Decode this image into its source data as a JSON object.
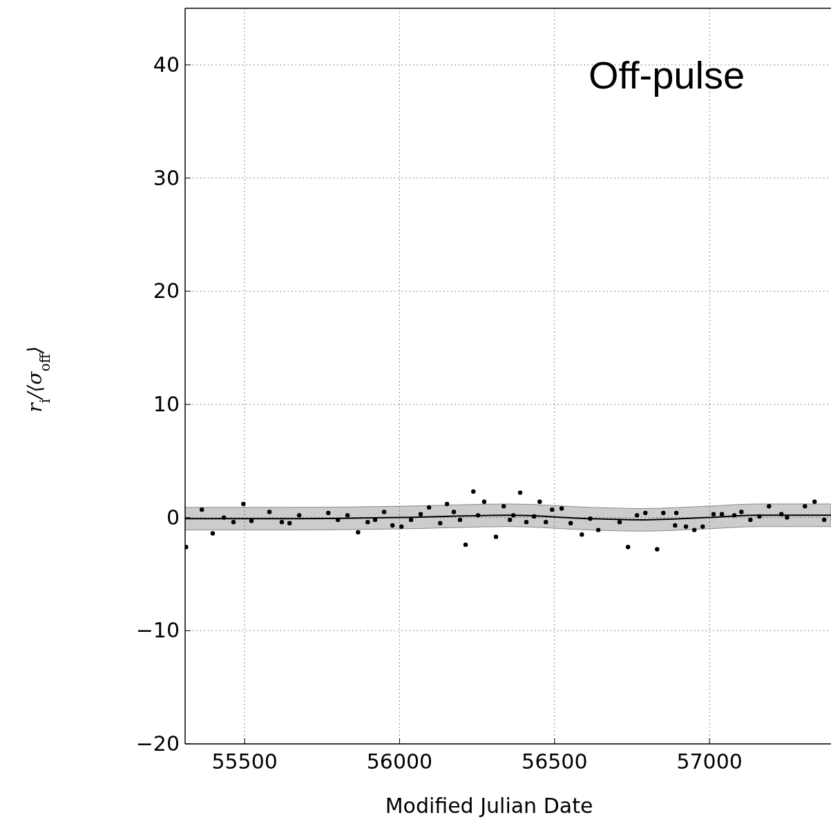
{
  "chart_data": {
    "type": "scatter",
    "title": "Off-pulse",
    "xlabel": "Modified Julian Date",
    "ylabel": "r$_{i}$/⟨σ$_{off}$⟩",
    "xlim": [
      55308,
      57392
    ],
    "xticks": [
      55500,
      56000,
      56500,
      57000
    ],
    "ylim": [
      -20,
      45
    ],
    "yticks": [
      -20,
      -10,
      0,
      10,
      20,
      30,
      40
    ],
    "grid": true,
    "series": [
      {
        "type": "line",
        "color": "#000000",
        "x": [
          55308,
          55647,
          56004,
          56358,
          56615,
          56784,
          56991,
          57156,
          57392
        ],
        "values": [
          -0.1,
          -0.1,
          0.0,
          0.2,
          -0.1,
          -0.2,
          0.0,
          0.2,
          0.2
        ],
        "lower": [
          -1.1,
          -1.1,
          -1.0,
          -0.8,
          -1.1,
          -1.2,
          -1.0,
          -0.8,
          -0.8
        ],
        "upper": [
          0.9,
          0.9,
          1.0,
          1.2,
          0.9,
          0.8,
          1.0,
          1.2,
          1.2
        ]
      },
      {
        "type": "scatter",
        "color": "#000000",
        "marker": "circle",
        "x": [
          55311,
          55362,
          55397,
          55433,
          55464,
          55496,
          55522,
          55580,
          55620,
          55645,
          55676,
          55770,
          55801,
          55832,
          55866,
          55897,
          55921,
          55950,
          55977,
          56006,
          56037,
          56068,
          56095,
          56131,
          56153,
          56175,
          56195,
          56213,
          56238,
          56253,
          56273,
          56311,
          56336,
          56356,
          56367,
          56389,
          56409,
          56434,
          56452,
          56472,
          56492,
          56523,
          56552,
          56588,
          56615,
          56641,
          56710,
          56737,
          56766,
          56793,
          56831,
          56851,
          56889,
          56893,
          56924,
          56951,
          56978,
          57013,
          57040,
          57080,
          57103,
          57132,
          57161,
          57192,
          57232,
          57250,
          57308,
          57339,
          57370
        ],
        "values": [
          -2.6,
          0.7,
          -1.4,
          0.0,
          -0.4,
          1.2,
          -0.3,
          0.5,
          -0.4,
          -0.5,
          0.2,
          0.4,
          -0.2,
          0.2,
          -1.3,
          -0.4,
          -0.2,
          0.5,
          -0.7,
          -0.8,
          -0.2,
          0.3,
          0.9,
          -0.5,
          1.2,
          0.5,
          -0.2,
          -2.4,
          2.3,
          0.2,
          1.4,
          -1.7,
          1.0,
          -0.2,
          0.2,
          2.2,
          -0.4,
          0.1,
          1.4,
          -0.4,
          0.7,
          0.8,
          -0.5,
          -1.5,
          -0.1,
          -1.1,
          -0.4,
          -2.6,
          0.2,
          0.4,
          -2.8,
          0.4,
          -0.7,
          0.4,
          -0.8,
          -1.1,
          -0.8,
          0.3,
          0.3,
          0.2,
          0.5,
          -0.2,
          0.1,
          1.0,
          0.3,
          0.0,
          1.0,
          1.4,
          -0.2
        ]
      }
    ]
  }
}
